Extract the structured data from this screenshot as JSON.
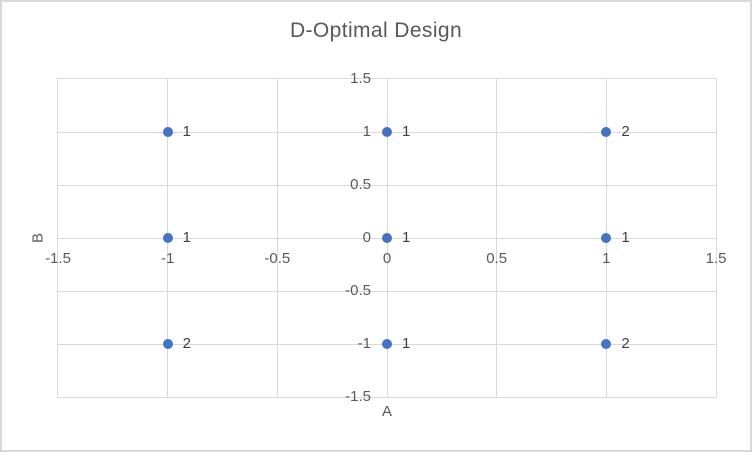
{
  "chart": {
    "border_color": "#D9D9D9",
    "background_color": "#FFFFFF"
  },
  "chart_data": {
    "type": "scatter",
    "title": "D-Optimal Design",
    "xlabel": "A",
    "ylabel": "B",
    "xlim": [
      -1.5,
      1.5
    ],
    "ylim": [
      -1.5,
      1.5
    ],
    "x_tick_labels": [
      "-1.5",
      "-1",
      "-0.5",
      "0",
      "0.5",
      "1",
      "1.5"
    ],
    "y_tick_labels": [
      "1.5",
      "1",
      "0.5",
      "0",
      "-0.5",
      "-1",
      "-1.5"
    ],
    "grid": true,
    "legend_position": "none",
    "marker_color": "#4472C4",
    "gridline_color": "#D9D9D9",
    "tick_label_color": "#595959",
    "data_label_color": "#404040",
    "title_color": "#595959",
    "points": [
      {
        "x": -1,
        "y": 1,
        "label": "1"
      },
      {
        "x": 0,
        "y": 1,
        "label": "1"
      },
      {
        "x": 1,
        "y": 1,
        "label": "2"
      },
      {
        "x": -1,
        "y": 0,
        "label": "1"
      },
      {
        "x": 0,
        "y": 0,
        "label": "1"
      },
      {
        "x": 1,
        "y": 0,
        "label": "1"
      },
      {
        "x": -1,
        "y": -1,
        "label": "2"
      },
      {
        "x": 0,
        "y": -1,
        "label": "1"
      },
      {
        "x": 1,
        "y": -1,
        "label": "2"
      }
    ]
  }
}
